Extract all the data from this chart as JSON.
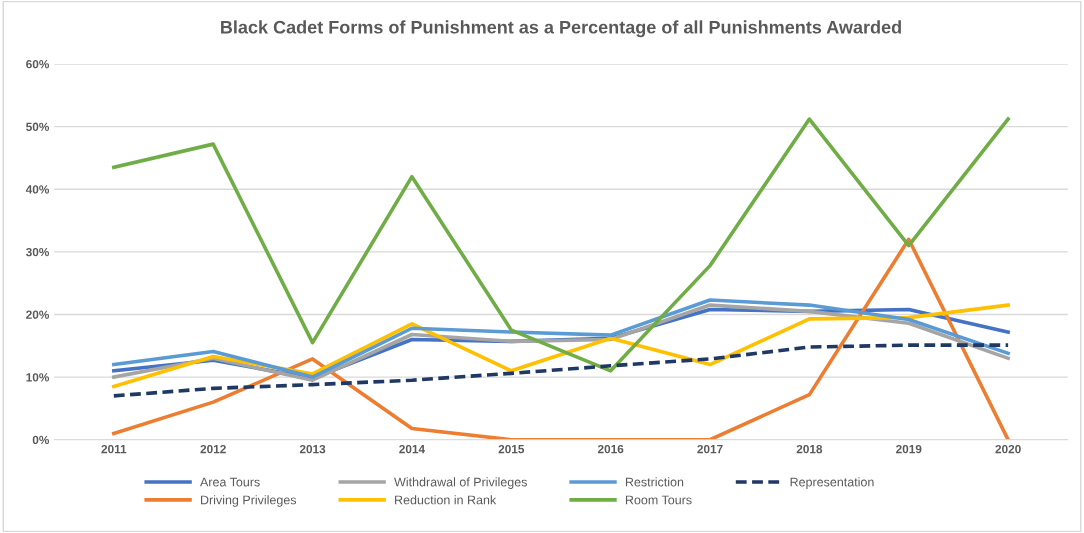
{
  "chart_data": {
    "type": "line",
    "title": "Black Cadet Forms of Punishment as a Percentage of all Punishments Awarded",
    "categories": [
      "2011",
      "2012",
      "2013",
      "2014",
      "2015",
      "2016",
      "2017",
      "2018",
      "2019",
      "2020"
    ],
    "ylim": [
      0,
      60
    ],
    "yticks": [
      {
        "value": 0,
        "label": "0%"
      },
      {
        "value": 10,
        "label": "10%"
      },
      {
        "value": 20,
        "label": "20%"
      },
      {
        "value": 30,
        "label": "30%"
      },
      {
        "value": 40,
        "label": "40%"
      },
      {
        "value": 50,
        "label": "50%"
      },
      {
        "value": 60,
        "label": "60%"
      }
    ],
    "grid": "y",
    "legend": "bottom",
    "marker": "none",
    "series": [
      {
        "name": "Area Tours",
        "color": "#4472c4",
        "values": [
          11,
          12.7,
          9.8,
          16,
          15.7,
          16.2,
          20.8,
          20.5,
          20.8,
          17.2
        ]
      },
      {
        "name": "Driving Privileges",
        "color": "#ed7d31",
        "values": [
          1,
          6,
          12.9,
          1.8,
          0,
          0,
          0,
          7.2,
          32,
          0
        ]
      },
      {
        "name": "Withdrawal of Privileges",
        "color": "#a5a5a5",
        "values": [
          10,
          13,
          9.5,
          16.8,
          15.7,
          16,
          21.5,
          20.5,
          18.6,
          13
        ]
      },
      {
        "name": "Reduction in Rank",
        "color": "#ffc000",
        "values": [
          8.5,
          13.3,
          10.5,
          18.5,
          11,
          16.2,
          12,
          19.3,
          19.5,
          21.5
        ]
      },
      {
        "name": "Restriction",
        "color": "#5b9bd5",
        "values": [
          12,
          14.1,
          10,
          17.8,
          17.2,
          16.7,
          22.3,
          21.5,
          19.2,
          13.8
        ]
      },
      {
        "name": "Room Tours",
        "color": "#70ad47",
        "values": [
          43.5,
          47.2,
          15.5,
          42,
          17.5,
          11,
          27.8,
          51.2,
          31,
          51.2
        ]
      },
      {
        "name": "Representation",
        "color": "#203864",
        "line_style": "dashed",
        "values": [
          7,
          8.2,
          8.8,
          9.5,
          10.6,
          11.8,
          12.9,
          14.8,
          15.1,
          15.1
        ]
      }
    ]
  }
}
